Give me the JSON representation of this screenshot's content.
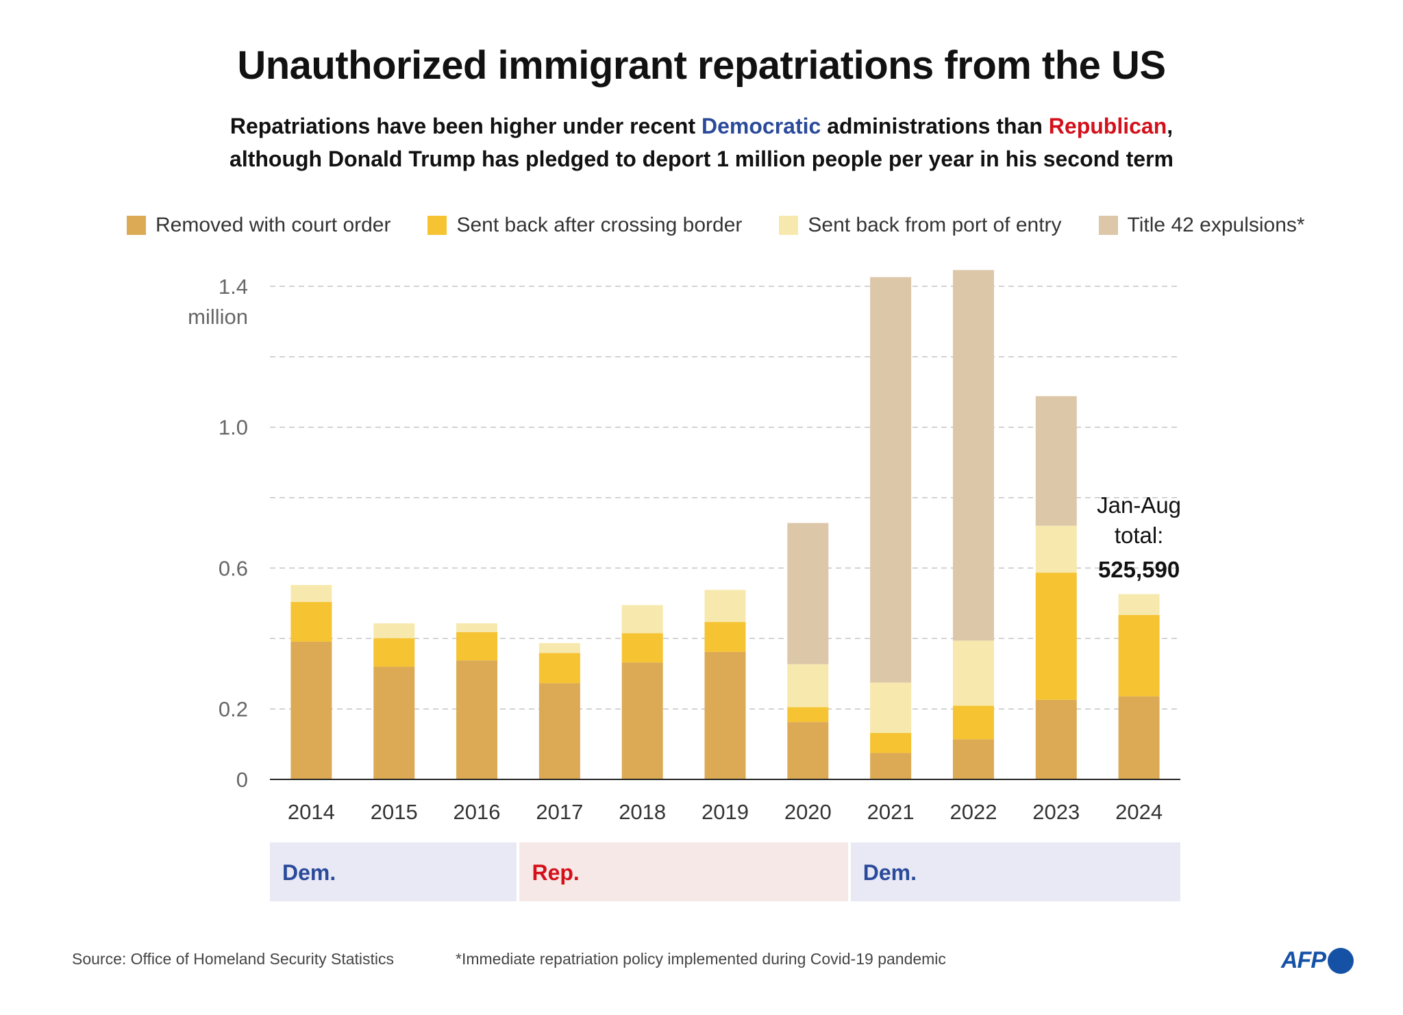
{
  "header": {
    "title": "Unauthorized immigrant repatriations from the US",
    "subtitle_parts": {
      "p1": "Repatriations have been higher under recent ",
      "dem": "Democratic",
      "p2": " administrations than ",
      "rep": "Republican",
      "p3": ",",
      "line2": "although Donald Trump has pledged to deport 1 million people per year in his second term"
    }
  },
  "colors": {
    "court": "#dcaa55",
    "crossing": "#f6c332",
    "port": "#f7e9ad",
    "title42": "#dcc7a9",
    "dem_text": "#2a4a9a",
    "rep_text": "#d4101a",
    "dem_bg": "#e9e9f6",
    "rep_bg": "#f6e8e6",
    "afp_blue": "#1552a6"
  },
  "chart_data": {
    "type": "bar",
    "stacked": true,
    "title": "Unauthorized immigrant repatriations from the US",
    "ylabel": "million",
    "ylim": [
      0,
      1.45
    ],
    "yticks": [
      0,
      0.2,
      0.4,
      0.6,
      0.8,
      1.0,
      1.2,
      1.4
    ],
    "ytick_labels": [
      "0",
      "0.2",
      "",
      "0.6",
      "",
      "1.0",
      "",
      "1.4"
    ],
    "ytick_unit": "million",
    "grid": true,
    "legend_position": "top",
    "categories": [
      "2014",
      "2015",
      "2016",
      "2017",
      "2018",
      "2019",
      "2020",
      "2021",
      "2022",
      "2023",
      "2024"
    ],
    "series": [
      {
        "name": "Removed with court order",
        "key": "court",
        "values": [
          0.391,
          0.32,
          0.338,
          0.273,
          0.332,
          0.362,
          0.163,
          0.075,
          0.114,
          0.226,
          0.236
        ]
      },
      {
        "name": "Sent back after crossing border",
        "key": "crossing",
        "values": [
          0.113,
          0.081,
          0.08,
          0.086,
          0.083,
          0.085,
          0.042,
          0.057,
          0.095,
          0.361,
          0.231
        ]
      },
      {
        "name": "Sent back from port of entry",
        "key": "port",
        "values": [
          0.048,
          0.042,
          0.025,
          0.028,
          0.08,
          0.091,
          0.122,
          0.143,
          0.185,
          0.133,
          0.059
        ]
      },
      {
        "name": "Title 42 expulsions*",
        "key": "title42",
        "values": [
          0,
          0,
          0,
          0,
          0,
          0,
          0.401,
          1.151,
          1.052,
          0.368,
          0
        ]
      }
    ],
    "annotation": {
      "category": "2024",
      "line1": "Jan-Aug",
      "line2": "total:",
      "value": "525,590"
    },
    "administrations": [
      {
        "label": "Dem.",
        "party": "dem",
        "from": "2014",
        "to": "2016"
      },
      {
        "label": "Rep.",
        "party": "rep",
        "from": "2017",
        "to": "2020"
      },
      {
        "label": "Dem.",
        "party": "dem",
        "from": "2021",
        "to": "2024"
      }
    ]
  },
  "legend": [
    {
      "label": "Removed with court order",
      "key": "court"
    },
    {
      "label": "Sent back after crossing border",
      "key": "crossing"
    },
    {
      "label": "Sent back from port of entry",
      "key": "port"
    },
    {
      "label": "Title 42 expulsions*",
      "key": "title42"
    }
  ],
  "footer": {
    "source": "Source: Office of Homeland Security Statistics",
    "note": "*Immediate repatriation policy implemented during Covid-19 pandemic",
    "logo": "AFP"
  }
}
